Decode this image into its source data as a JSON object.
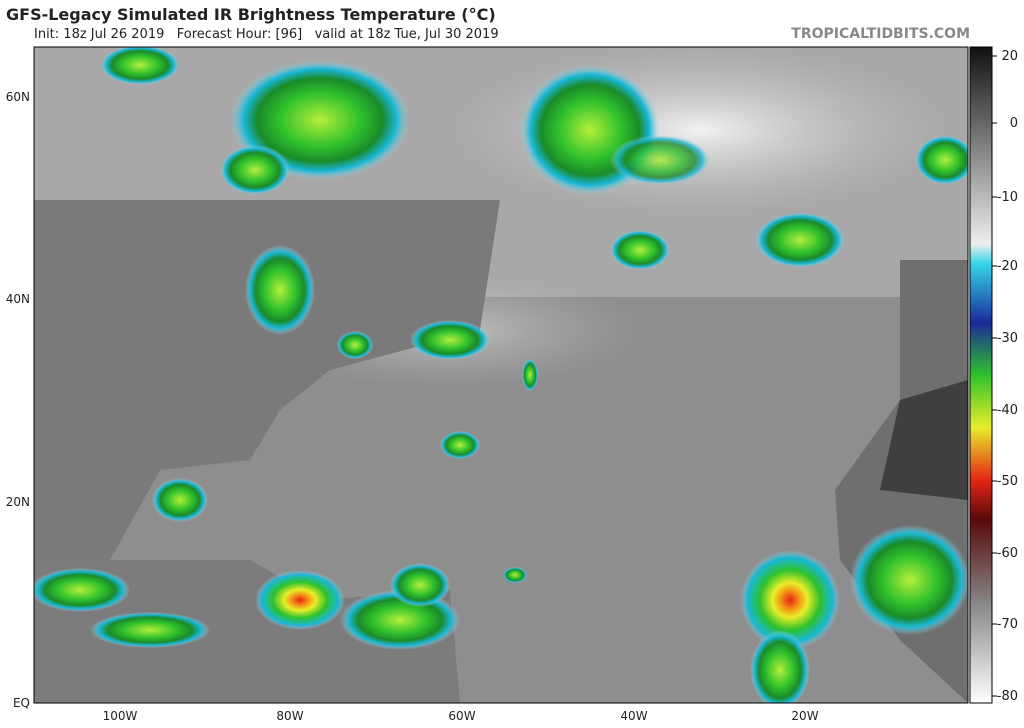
{
  "header": {
    "title": "GFS-Legacy Simulated IR Brightness Temperature (°C)",
    "subtitle": "Init: 18z Jul 26 2019   Forecast Hour: [96]   valid at 18z Tue, Jul 30 2019",
    "site": "TROPICALTIDBITS.COM"
  },
  "map": {
    "lat_labels": [
      "60N",
      "40N",
      "20N",
      "EQ"
    ],
    "lon_labels": [
      "100W",
      "80W",
      "60W",
      "40W",
      "20W"
    ]
  },
  "colorbar": {
    "ticks": [
      20,
      0,
      -10,
      -20,
      -30,
      -40,
      -50,
      -60,
      -70,
      -80
    ]
  }
}
